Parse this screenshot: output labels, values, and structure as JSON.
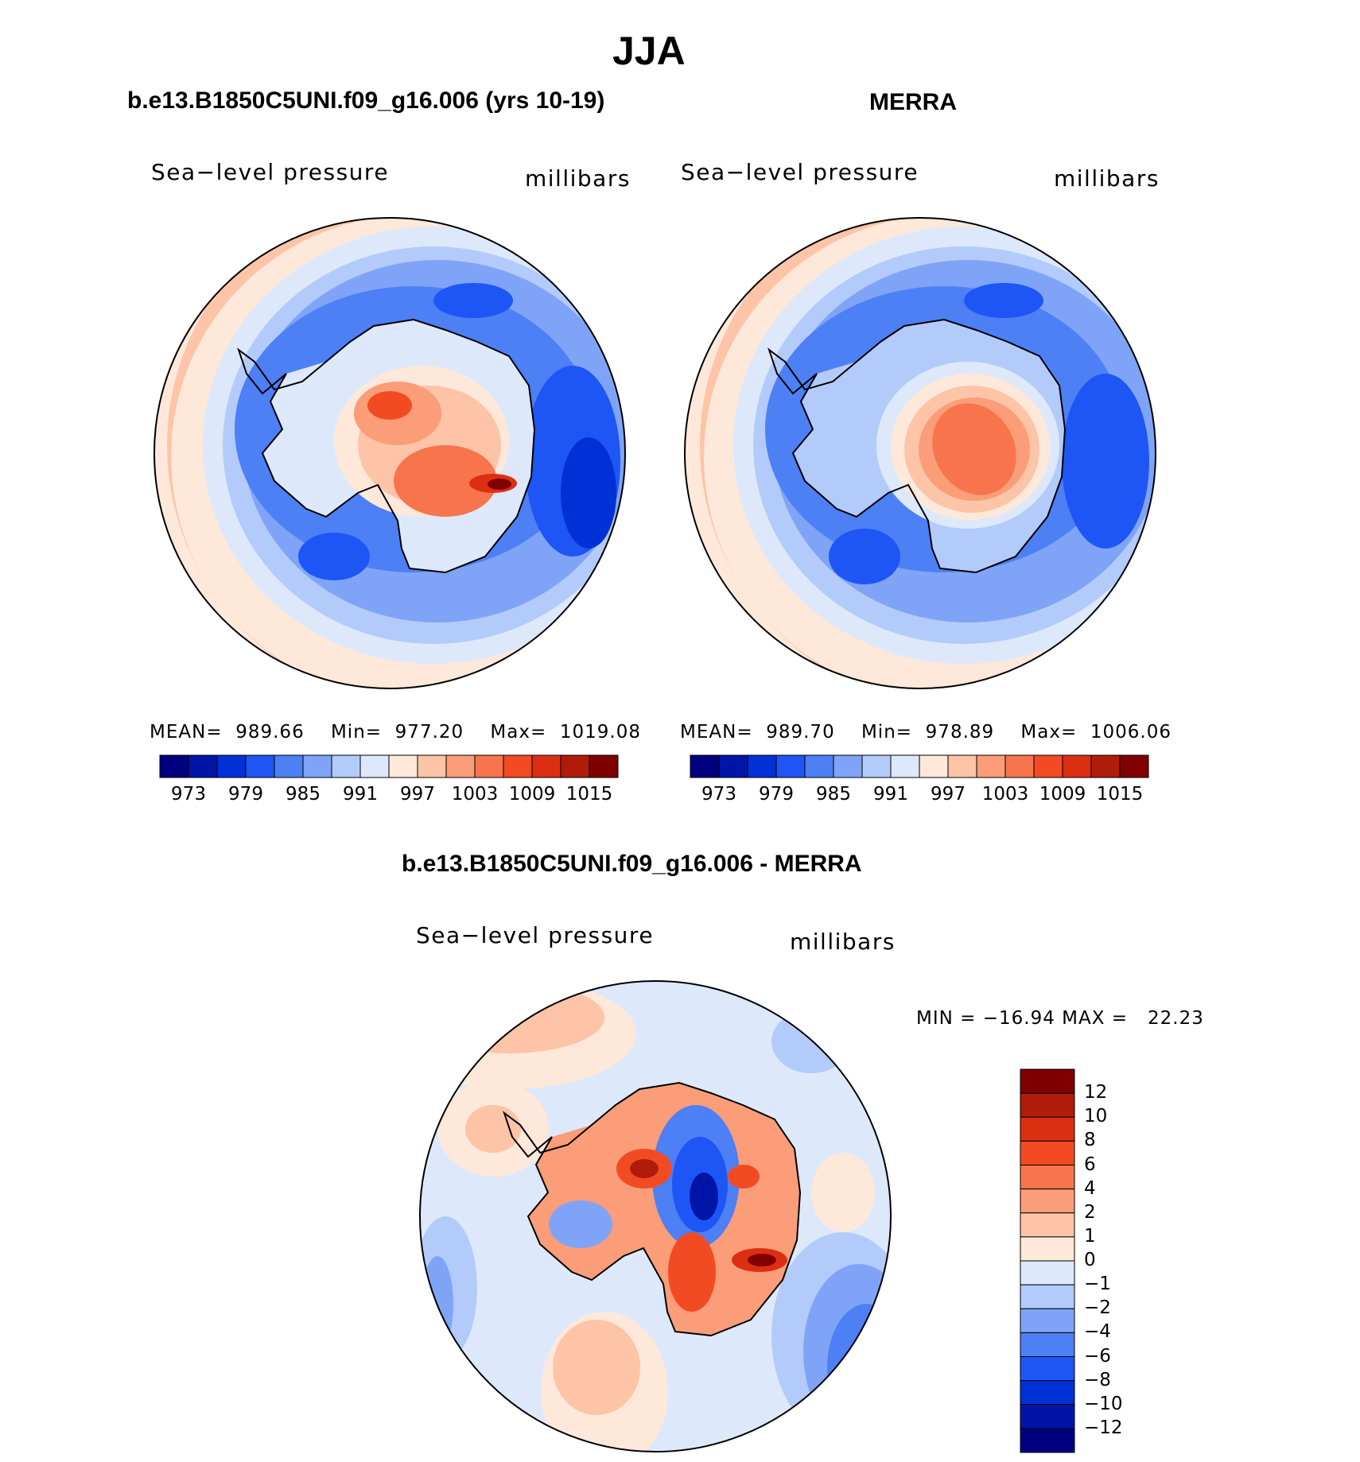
{
  "figure": {
    "title": "JJA",
    "panel_left": {
      "heading": "b.e13.B1850C5UNI.f09_g16.006 (yrs 10-19)",
      "variable": "Sea−level pressure",
      "units": "millibars",
      "mean_label": "MEAN=",
      "mean_value": "989.66",
      "min_label": "Min=",
      "min_value": "977.20",
      "max_label": "Max=",
      "max_value": "1019.08"
    },
    "panel_right": {
      "heading": "MERRA",
      "variable": "Sea−level pressure",
      "units": "millibars",
      "mean_label": "MEAN=",
      "mean_value": "989.70",
      "min_label": "Min=",
      "min_value": "978.89",
      "max_label": "Max=",
      "max_value": "1006.06"
    },
    "panel_diff": {
      "heading": "b.e13.B1850C5UNI.f09_g16.006 - MERRA",
      "variable": "Sea−level pressure",
      "units": "millibars",
      "minmax_text": "MIN = −16.94 MAX =   22.23"
    }
  },
  "colorbars": {
    "abs_ticks": [
      "973",
      "979",
      "985",
      "991",
      "997",
      "1003",
      "1009",
      "1015"
    ],
    "abs_colors": [
      "#000080",
      "#0015a8",
      "#0031d6",
      "#1e56f5",
      "#4d7ff5",
      "#7fa4f7",
      "#b3cbfa",
      "#dde9fb",
      "#fde8da",
      "#fdc4a8",
      "#fb9d78",
      "#f7744d",
      "#f24b24",
      "#dc2f12",
      "#b01c0a",
      "#800000"
    ],
    "diff_ticks": [
      "12",
      "10",
      "8",
      "6",
      "4",
      "2",
      "1",
      "0",
      "−1",
      "−2",
      "−4",
      "−6",
      "−8",
      "−10",
      "−12"
    ],
    "diff_colors": [
      "#800000",
      "#b01c0a",
      "#dc2f12",
      "#f24b24",
      "#f7744d",
      "#fb9d78",
      "#fdc4a8",
      "#fde8da",
      "#dde9fb",
      "#b3cbfa",
      "#7fa4f7",
      "#4d7ff5",
      "#1e56f5",
      "#0031d6",
      "#0015a8",
      "#000080"
    ]
  }
}
